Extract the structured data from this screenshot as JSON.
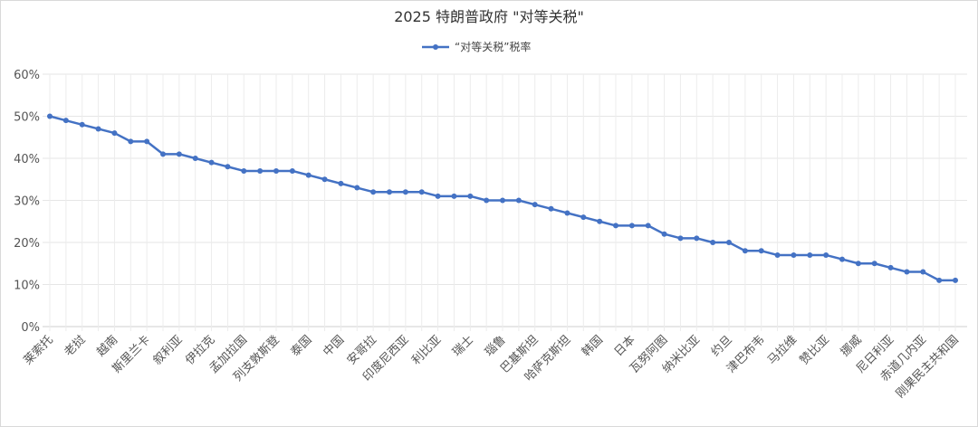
{
  "chart_data": {
    "type": "line",
    "title": "2025 特朗普政府 \"对等关税\"",
    "legend": {
      "label": "“对等关税”税率",
      "placement": "top-center"
    },
    "xlabel": "",
    "ylabel": "",
    "ylim": [
      0,
      60
    ],
    "yticks": [
      "0%",
      "10%",
      "20%",
      "30%",
      "40%",
      "50%",
      "60%"
    ],
    "grid": true,
    "color": "#4472c4",
    "tick_labels_every_other_point": [
      "莱索托",
      "老挝",
      "越南",
      "斯里兰卡",
      "叙利亚",
      "伊拉克",
      "孟加拉国",
      "列支敦斯登",
      "泰国",
      "中国",
      "安哥拉",
      "印度尼西亚",
      "利比亚",
      "瑞士",
      "瑙鲁",
      "巴基斯坦",
      "哈萨克斯坦",
      "韩国",
      "日本",
      "瓦努阿图",
      "纳米比亚",
      "约旦",
      "津巴布韦",
      "马拉维",
      "赞比亚",
      "挪威",
      "尼日利亚",
      "赤道几内亚",
      "刚果民主共和国"
    ],
    "values": [
      50,
      49,
      48,
      47,
      46,
      44,
      44,
      41,
      41,
      40,
      39,
      38,
      37,
      37,
      37,
      37,
      36,
      35,
      34,
      33,
      32,
      32,
      32,
      32,
      31,
      31,
      31,
      30,
      30,
      30,
      29,
      28,
      27,
      26,
      25,
      24,
      24,
      24,
      22,
      21,
      21,
      20,
      20,
      18,
      18,
      17,
      17,
      17,
      17,
      16,
      15,
      15,
      14,
      13,
      13,
      11,
      11
    ]
  }
}
